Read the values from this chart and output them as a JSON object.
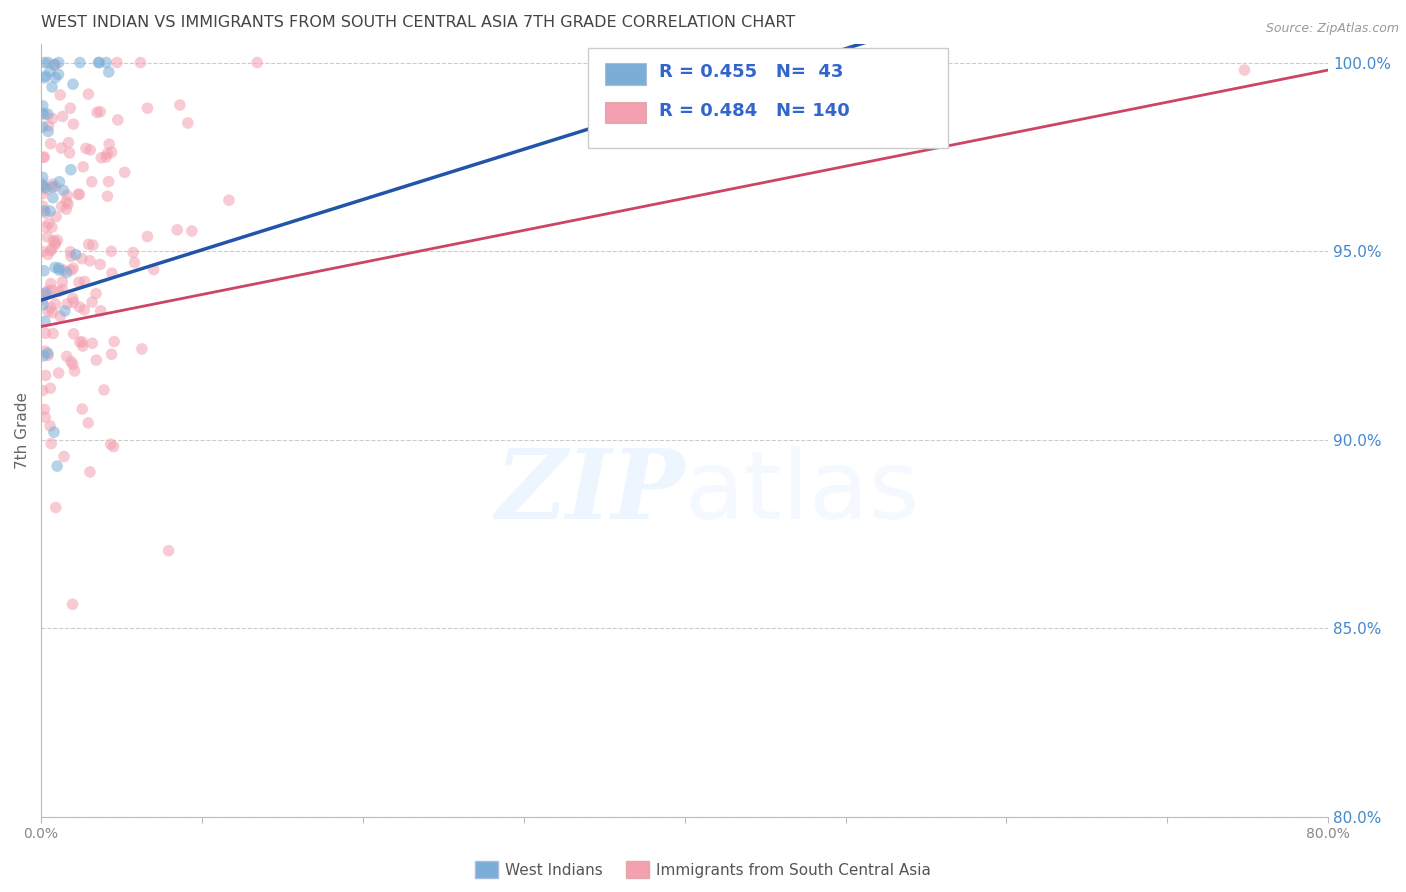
{
  "title": "WEST INDIAN VS IMMIGRANTS FROM SOUTH CENTRAL ASIA 7TH GRADE CORRELATION CHART",
  "source": "Source: ZipAtlas.com",
  "ylabel": "7th Grade",
  "xlim": [
    0.0,
    0.8
  ],
  "ylim": [
    0.8,
    1.005
  ],
  "xticks": [
    0.0,
    0.1,
    0.2,
    0.3,
    0.4,
    0.5,
    0.6,
    0.7,
    0.8
  ],
  "xticklabels": [
    "0.0%",
    "",
    "",
    "",
    "",
    "",
    "",
    "",
    "80.0%"
  ],
  "yticks": [
    0.8,
    0.85,
    0.9,
    0.95,
    1.0
  ],
  "yticklabels": [
    "80.0%",
    "85.0%",
    "90.0%",
    "95.0%",
    "100.0%"
  ],
  "legend_label1": "West Indians",
  "legend_label2": "Immigrants from South Central Asia",
  "R1": 0.455,
  "N1": 43,
  "R2": 0.484,
  "N2": 140,
  "color1": "#7aaed6",
  "color2": "#f4a0b0",
  "trendline_color1": "#2255aa",
  "trendline_color2": "#cc4466",
  "legend_text_color": "#3366cc",
  "marker_size": 70,
  "marker_alpha": 0.55,
  "background_color": "#ffffff",
  "grid_color": "#cccccc",
  "title_color": "#444444",
  "axis_color": "#bbbbbb",
  "right_axis_color": "#4488cc",
  "wi_seed": 42,
  "sca_seed": 99
}
